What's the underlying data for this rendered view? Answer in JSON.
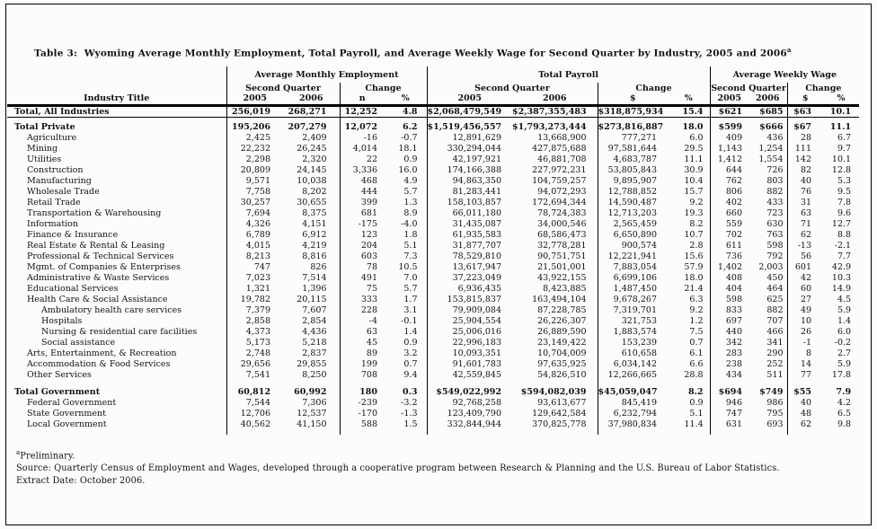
{
  "page": {
    "title": "Table 3:  Wyoming Average Monthly Employment, Total Payroll, and Average Weekly Wage for Second Quarter by Industry, 2005 and 2006",
    "title_sup": "a"
  },
  "table": {
    "industry_header": "Industry Title",
    "groups": [
      {
        "title": "Average Monthly Employment",
        "second_quarter": "Second Quarter",
        "change": "Change",
        "cols": [
          "2005",
          "2006",
          "n",
          "%"
        ]
      },
      {
        "title": "Total Payroll",
        "second_quarter": "Second Quarter",
        "change": "Change",
        "cols": [
          "2005",
          "2006",
          "$",
          "%"
        ]
      },
      {
        "title": "Average Weekly Wage",
        "second_quarter": "Second Quarter",
        "change": "Change",
        "cols": [
          "2005",
          "2006",
          "$",
          "%"
        ]
      }
    ],
    "rows": [
      {
        "label": "Total, All Industries",
        "indent": 0,
        "bold": true,
        "rule": true,
        "values": [
          "256,019",
          "268,271",
          "12,252",
          "4.8",
          "$2,068,479,549",
          "$2,387,355,483",
          "$318,875,934",
          "15.4",
          "$621",
          "$685",
          "$63",
          "10.1"
        ]
      },
      {
        "type": "spacer"
      },
      {
        "label": "Total Private",
        "indent": 0,
        "bold": true,
        "values": [
          "195,206",
          "207,279",
          "12,072",
          "6.2",
          "$1,519,456,557",
          "$1,793,273,444",
          "$273,816,887",
          "18.0",
          "$599",
          "$666",
          "$67",
          "11.1"
        ]
      },
      {
        "label": "Agriculture",
        "indent": 1,
        "values": [
          "2,425",
          "2,409",
          "-16",
          "-0.7",
          "12,891,629",
          "13,668,900",
          "777,271",
          "6.0",
          "409",
          "436",
          "28",
          "6.7"
        ]
      },
      {
        "label": "Mining",
        "indent": 1,
        "values": [
          "22,232",
          "26,245",
          "4,014",
          "18.1",
          "330,294,044",
          "427,875,688",
          "97,581,644",
          "29.5",
          "1,143",
          "1,254",
          "111",
          "9.7"
        ]
      },
      {
        "label": "Utilities",
        "indent": 1,
        "values": [
          "2,298",
          "2,320",
          "22",
          "0.9",
          "42,197,921",
          "46,881,708",
          "4,683,787",
          "11.1",
          "1,412",
          "1,554",
          "142",
          "10.1"
        ]
      },
      {
        "label": "Construction",
        "indent": 1,
        "values": [
          "20,809",
          "24,145",
          "3,336",
          "16.0",
          "174,166,388",
          "227,972,231",
          "53,805,843",
          "30.9",
          "644",
          "726",
          "82",
          "12.8"
        ]
      },
      {
        "label": "Manufacturing",
        "indent": 1,
        "values": [
          "9,571",
          "10,038",
          "468",
          "4.9",
          "94,863,350",
          "104,759,257",
          "9,895,907",
          "10.4",
          "762",
          "803",
          "40",
          "5.3"
        ]
      },
      {
        "label": "Wholesale Trade",
        "indent": 1,
        "values": [
          "7,758",
          "8,202",
          "444",
          "5.7",
          "81,283,441",
          "94,072,293",
          "12,788,852",
          "15.7",
          "806",
          "882",
          "76",
          "9.5"
        ]
      },
      {
        "label": "Retail Trade",
        "indent": 1,
        "values": [
          "30,257",
          "30,655",
          "399",
          "1.3",
          "158,103,857",
          "172,694,344",
          "14,590,487",
          "9.2",
          "402",
          "433",
          "31",
          "7.8"
        ]
      },
      {
        "label": "Transportation & Warehousing",
        "indent": 1,
        "values": [
          "7,694",
          "8,375",
          "681",
          "8.9",
          "66,011,180",
          "78,724,383",
          "12,713,203",
          "19.3",
          "660",
          "723",
          "63",
          "9.6"
        ]
      },
      {
        "label": "Information",
        "indent": 1,
        "values": [
          "4,326",
          "4,151",
          "-175",
          "-4.0",
          "31,435,087",
          "34,000,546",
          "2,565,459",
          "8.2",
          "559",
          "630",
          "71",
          "12.7"
        ]
      },
      {
        "label": "Finance & Insurance",
        "indent": 1,
        "values": [
          "6,789",
          "6,912",
          "123",
          "1.8",
          "61,935,583",
          "68,586,473",
          "6,650,890",
          "10.7",
          "702",
          "763",
          "62",
          "8.8"
        ]
      },
      {
        "label": "Real Estate & Rental & Leasing",
        "indent": 1,
        "values": [
          "4,015",
          "4,219",
          "204",
          "5.1",
          "31,877,707",
          "32,778,281",
          "900,574",
          "2.8",
          "611",
          "598",
          "-13",
          "-2.1"
        ]
      },
      {
        "label": "Professional & Technical Services",
        "indent": 1,
        "values": [
          "8,213",
          "8,816",
          "603",
          "7.3",
          "78,529,810",
          "90,751,751",
          "12,221,941",
          "15.6",
          "736",
          "792",
          "56",
          "7.7"
        ]
      },
      {
        "label": "Mgmt. of Companies & Enterprises",
        "indent": 1,
        "values": [
          "747",
          "826",
          "78",
          "10.5",
          "13,617,947",
          "21,501,001",
          "7,883,054",
          "57.9",
          "1,402",
          "2,003",
          "601",
          "42.9"
        ]
      },
      {
        "label": "Administrative & Waste Services",
        "indent": 1,
        "values": [
          "7,023",
          "7,514",
          "491",
          "7.0",
          "37,223,049",
          "43,922,155",
          "6,699,106",
          "18.0",
          "408",
          "450",
          "42",
          "10.3"
        ]
      },
      {
        "label": "Educational Services",
        "indent": 1,
        "values": [
          "1,321",
          "1,396",
          "75",
          "5.7",
          "6,936,435",
          "8,423,885",
          "1,487,450",
          "21.4",
          "404",
          "464",
          "60",
          "14.9"
        ]
      },
      {
        "label": "Health Care & Social Assistance",
        "indent": 1,
        "values": [
          "19,782",
          "20,115",
          "333",
          "1.7",
          "153,815,837",
          "163,494,104",
          "9,678,267",
          "6.3",
          "598",
          "625",
          "27",
          "4.5"
        ]
      },
      {
        "label": "Ambulatory health care services",
        "indent": 2,
        "values": [
          "7,379",
          "7,607",
          "228",
          "3.1",
          "79,909,084",
          "87,228,785",
          "7,319,701",
          "9.2",
          "833",
          "882",
          "49",
          "5.9"
        ]
      },
      {
        "label": "Hospitals",
        "indent": 2,
        "values": [
          "2,858",
          "2,854",
          "-4",
          "-0.1",
          "25,904,554",
          "26,226,307",
          "321,753",
          "1.2",
          "697",
          "707",
          "10",
          "1.4"
        ]
      },
      {
        "label": "Nursing & residential care facilities",
        "indent": 2,
        "values": [
          "4,373",
          "4,436",
          "63",
          "1.4",
          "25,006,016",
          "26,889,590",
          "1,883,574",
          "7.5",
          "440",
          "466",
          "26",
          "6.0"
        ]
      },
      {
        "label": "Social assistance",
        "indent": 2,
        "values": [
          "5,173",
          "5,218",
          "45",
          "0.9",
          "22,996,183",
          "23,149,422",
          "153,239",
          "0.7",
          "342",
          "341",
          "-1",
          "-0.2"
        ]
      },
      {
        "label": "Arts, Entertainment, & Recreation",
        "indent": 1,
        "values": [
          "2,748",
          "2,837",
          "89",
          "3.2",
          "10,093,351",
          "10,704,009",
          "610,658",
          "6.1",
          "283",
          "290",
          "8",
          "2.7"
        ]
      },
      {
        "label": "Accommodation & Food Services",
        "indent": 1,
        "values": [
          "29,656",
          "29,855",
          "199",
          "0.7",
          "91,601,783",
          "97,635,925",
          "6,034,142",
          "6.6",
          "238",
          "252",
          "14",
          "5.9"
        ]
      },
      {
        "label": "Other Services",
        "indent": 1,
        "values": [
          "7,541",
          "8,250",
          "708",
          "9.4",
          "42,559,845",
          "54,826,510",
          "12,266,665",
          "28.8",
          "434",
          "511",
          "77",
          "17.8"
        ]
      },
      {
        "type": "spacer",
        "tall": true
      },
      {
        "label": "Total Government",
        "indent": 0,
        "bold": true,
        "values": [
          "60,812",
          "60,992",
          "180",
          "0.3",
          "$549,022,992",
          "$594,082,039",
          "$45,059,047",
          "8.2",
          "$694",
          "$749",
          "$55",
          "7.9"
        ]
      },
      {
        "label": "Federal Government",
        "indent": 1,
        "values": [
          "7,544",
          "7,306",
          "-239",
          "-3.2",
          "92,768,258",
          "93,613,677",
          "845,419",
          "0.9",
          "946",
          "986",
          "40",
          "4.2"
        ]
      },
      {
        "label": "State Government",
        "indent": 1,
        "values": [
          "12,706",
          "12,537",
          "-170",
          "-1.3",
          "123,409,790",
          "129,642,584",
          "6,232,794",
          "5.1",
          "747",
          "795",
          "48",
          "6.5"
        ]
      },
      {
        "label": "Local Government",
        "indent": 1,
        "values": [
          "40,562",
          "41,150",
          "588",
          "1.5",
          "332,844,944",
          "370,825,778",
          "37,980,834",
          "11.4",
          "631",
          "693",
          "62",
          "9.8"
        ]
      },
      {
        "type": "spacer",
        "tail": true
      }
    ]
  },
  "footnotes": {
    "sup": "a",
    "preliminary": "Preliminary.",
    "source": "Source: Quarterly Census of Employment and Wages, developed through a cooperative program between Research & Planning and the U.S. Bureau of Labor Statistics.",
    "extract_date": "Extract Date: October 2006."
  }
}
